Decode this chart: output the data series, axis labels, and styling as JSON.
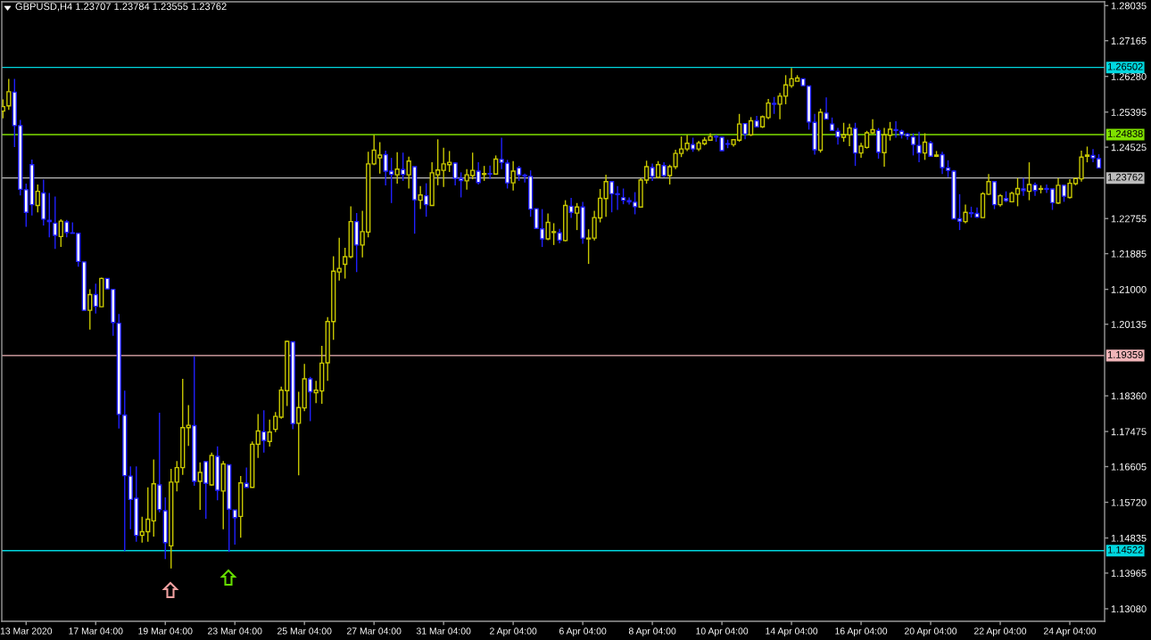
{
  "chart_data": {
    "type": "candlestick",
    "title": "GBPUSD,H4 1.23707 1.23784 1.23555 1.23762",
    "categories": [
      null,
      null,
      null,
      null,
      "13 Mar 2020",
      null,
      null,
      null,
      null,
      null,
      null,
      null,
      null,
      null,
      null,
      null,
      "17 Mar 04:00",
      null,
      null,
      null,
      null,
      null,
      null,
      null,
      null,
      null,
      null,
      null,
      "19 Mar 04:00",
      null,
      null,
      null,
      null,
      null,
      null,
      null,
      null,
      null,
      null,
      null,
      "23 Mar 04:00",
      null,
      null,
      null,
      null,
      null,
      null,
      null,
      null,
      null,
      null,
      null,
      "25 Mar 04:00",
      null,
      null,
      null,
      null,
      null,
      null,
      null,
      null,
      null,
      null,
      null,
      "27 Mar 04:00",
      null,
      null,
      null,
      null,
      null,
      null,
      null,
      null,
      null,
      null,
      null,
      "31 Mar 04:00",
      null,
      null,
      null,
      null,
      null,
      null,
      null,
      null,
      null,
      null,
      null,
      "2 Apr 04:00",
      null,
      null,
      null,
      null,
      null,
      null,
      null,
      null,
      null,
      null,
      null,
      "6 Apr 04:00",
      null,
      null,
      null,
      null,
      null,
      null,
      null,
      null,
      null,
      null,
      null,
      "8 Apr 04:00",
      null,
      null,
      null,
      null,
      null,
      null,
      null,
      null,
      null,
      null,
      null,
      "10 Apr 04:00",
      null,
      null,
      null,
      null,
      null,
      null,
      null,
      null,
      null,
      null,
      null,
      "14 Apr 04:00",
      null,
      null,
      null,
      null,
      null,
      null,
      null,
      null,
      null,
      null,
      null,
      "16 Apr 04:00",
      null,
      null,
      null,
      null,
      null,
      null,
      null,
      null,
      null,
      null,
      null,
      "20 Apr 04:00",
      null,
      null,
      null,
      null,
      null,
      null,
      null,
      null,
      null,
      null,
      null,
      "22 Apr 04:00",
      null,
      null,
      null,
      null,
      null,
      null,
      null,
      null,
      null,
      null,
      null,
      "24 Apr 04:00",
      null,
      null,
      null,
      null,
      null
    ],
    "ohlc": [
      [
        1.2542,
        1.2571,
        1.2524,
        1.2553
      ],
      [
        1.2555,
        1.2622,
        1.2545,
        1.259
      ],
      [
        1.2589,
        1.2622,
        1.2453,
        1.2506
      ],
      [
        1.2506,
        1.252,
        1.2333,
        1.2348
      ],
      [
        1.2347,
        1.2362,
        1.2255,
        1.2291
      ],
      [
        1.2409,
        1.2422,
        1.2283,
        1.231
      ],
      [
        1.2308,
        1.236,
        1.2291,
        1.2343
      ],
      [
        1.2339,
        1.2372,
        1.2258,
        1.2274
      ],
      [
        1.2271,
        1.2339,
        1.2229,
        1.2268
      ],
      [
        1.2264,
        1.233,
        1.22,
        1.2234
      ],
      [
        1.2231,
        1.2274,
        1.2205,
        1.2269
      ],
      [
        1.2267,
        1.2272,
        1.2229,
        1.2241
      ],
      [
        1.224,
        1.2266,
        1.2239,
        1.2239
      ],
      [
        1.2239,
        1.2239,
        1.2156,
        1.2169
      ],
      [
        1.2168,
        1.2168,
        1.2048,
        1.2048
      ],
      [
        1.2048,
        1.21,
        1.2,
        1.2087
      ],
      [
        1.2087,
        1.2114,
        1.204,
        1.2058
      ],
      [
        1.2057,
        1.2129,
        1.2056,
        1.2127
      ],
      [
        1.2127,
        1.2127,
        1.2101,
        1.2101
      ],
      [
        1.21,
        1.21,
        1.1985,
        1.2018
      ],
      [
        1.2016,
        1.2039,
        1.1755,
        1.179
      ],
      [
        1.1788,
        1.1849,
        1.1451,
        1.1638
      ],
      [
        1.1637,
        1.1661,
        1.1505,
        1.1579
      ],
      [
        1.1582,
        1.1661,
        1.1474,
        1.149
      ],
      [
        1.149,
        1.1536,
        1.1472,
        1.1499
      ],
      [
        1.1499,
        1.1609,
        1.1474,
        1.153
      ],
      [
        1.1526,
        1.1678,
        1.1487,
        1.1618
      ],
      [
        1.1615,
        1.1794,
        1.1547,
        1.1554
      ],
      [
        1.1551,
        1.1584,
        1.1431,
        1.1472
      ],
      [
        1.1464,
        1.1655,
        1.1408,
        1.1622
      ],
      [
        1.1622,
        1.1674,
        1.1599,
        1.1658
      ],
      [
        1.1658,
        1.1878,
        1.164,
        1.1757
      ],
      [
        1.1757,
        1.1813,
        1.1712,
        1.1763
      ],
      [
        1.1762,
        1.1934,
        1.1613,
        1.1624
      ],
      [
        1.1624,
        1.1671,
        1.1553,
        1.1646
      ],
      [
        1.1673,
        1.1673,
        1.1531,
        1.1619
      ],
      [
        1.1615,
        1.1695,
        1.1613,
        1.1688
      ],
      [
        1.1686,
        1.1711,
        1.1577,
        1.1602
      ],
      [
        1.16,
        1.1674,
        1.1505,
        1.1667
      ],
      [
        1.1665,
        1.1665,
        1.1449,
        1.1555
      ],
      [
        1.1553,
        1.1553,
        1.1467,
        1.1534
      ],
      [
        1.1537,
        1.1637,
        1.1484,
        1.162
      ],
      [
        1.1619,
        1.1658,
        1.1609,
        1.1609
      ],
      [
        1.1609,
        1.1723,
        1.1608,
        1.1716
      ],
      [
        1.1716,
        1.1791,
        1.1682,
        1.1749
      ],
      [
        1.1747,
        1.18,
        1.1695,
        1.1725
      ],
      [
        1.1723,
        1.1777,
        1.171,
        1.1746
      ],
      [
        1.1753,
        1.1796,
        1.1746,
        1.1785
      ],
      [
        1.1783,
        1.1859,
        1.1779,
        1.185
      ],
      [
        1.1849,
        1.1973,
        1.1811,
        1.1971
      ],
      [
        1.197,
        1.197,
        1.1753,
        1.1767
      ],
      [
        1.1768,
        1.1846,
        1.1639,
        1.1807
      ],
      [
        1.1806,
        1.1915,
        1.1798,
        1.1878
      ],
      [
        1.1878,
        1.1883,
        1.1773,
        1.1846
      ],
      [
        1.1844,
        1.1873,
        1.1818,
        1.185
      ],
      [
        1.1848,
        1.196,
        1.1816,
        1.1917
      ],
      [
        1.1918,
        1.2031,
        1.1873,
        1.202
      ],
      [
        1.202,
        1.2182,
        1.1975,
        1.2145
      ],
      [
        1.2143,
        1.2228,
        1.2122,
        1.2152
      ],
      [
        1.2162,
        1.2203,
        1.2127,
        1.2181
      ],
      [
        1.2181,
        1.2306,
        1.2177,
        1.2268
      ],
      [
        1.2268,
        1.2289,
        1.2143,
        1.221
      ],
      [
        1.221,
        1.2295,
        1.2179,
        1.2243
      ],
      [
        1.2242,
        1.2441,
        1.2229,
        1.2411
      ],
      [
        1.2411,
        1.2483,
        1.2408,
        1.2445
      ],
      [
        1.2426,
        1.2465,
        1.2387,
        1.2433
      ],
      [
        1.2434,
        1.2444,
        1.2358,
        1.2393
      ],
      [
        1.2393,
        1.2426,
        1.2314,
        1.2385
      ],
      [
        1.2384,
        1.244,
        1.2362,
        1.2398
      ],
      [
        1.2397,
        1.2439,
        1.2369,
        1.2385
      ],
      [
        1.2384,
        1.2429,
        1.235,
        1.2418
      ],
      [
        1.2404,
        1.2404,
        1.2238,
        1.2322
      ],
      [
        1.2321,
        1.2356,
        1.2299,
        1.2334
      ],
      [
        1.2332,
        1.2363,
        1.228,
        1.231
      ],
      [
        1.2308,
        1.2415,
        1.2308,
        1.2389
      ],
      [
        1.2384,
        1.2472,
        1.2358,
        1.2396
      ],
      [
        1.2395,
        1.2451,
        1.2354,
        1.2411
      ],
      [
        1.2409,
        1.2443,
        1.2391,
        1.2415
      ],
      [
        1.2413,
        1.2415,
        1.2358,
        1.2375
      ],
      [
        1.2375,
        1.239,
        1.2328,
        1.237
      ],
      [
        1.2369,
        1.2398,
        1.2347,
        1.2384
      ],
      [
        1.2382,
        1.2439,
        1.2373,
        1.2395
      ],
      [
        1.2393,
        1.2415,
        1.236,
        1.2365
      ],
      [
        1.2385,
        1.2406,
        1.2369,
        1.2387
      ],
      [
        1.2387,
        1.2407,
        1.2373,
        1.2386
      ],
      [
        1.2386,
        1.2432,
        1.2384,
        1.2423
      ],
      [
        1.2422,
        1.2476,
        1.2398,
        1.2415
      ],
      [
        1.2413,
        1.2421,
        1.235,
        1.2364
      ],
      [
        1.2364,
        1.2418,
        1.2345,
        1.2393
      ],
      [
        1.2401,
        1.2406,
        1.2369,
        1.2384
      ],
      [
        1.2383,
        1.2387,
        1.2365,
        1.2381
      ],
      [
        1.238,
        1.2395,
        1.228,
        1.2299
      ],
      [
        1.23,
        1.23,
        1.225,
        1.2251
      ],
      [
        1.225,
        1.2299,
        1.2205,
        1.2225
      ],
      [
        1.2225,
        1.2288,
        1.2222,
        1.2266
      ],
      [
        1.2241,
        1.2264,
        1.221,
        1.2243
      ],
      [
        1.224,
        1.225,
        1.2214,
        1.2222
      ],
      [
        1.2221,
        1.2321,
        1.2219,
        1.2308
      ],
      [
        1.2306,
        1.2327,
        1.2277,
        1.2291
      ],
      [
        1.2289,
        1.2314,
        1.2247,
        1.2304
      ],
      [
        1.2304,
        1.2317,
        1.2213,
        1.2227
      ],
      [
        1.2225,
        1.2249,
        1.2163,
        1.2227
      ],
      [
        1.2227,
        1.2295,
        1.2221,
        1.2278
      ],
      [
        1.2277,
        1.2349,
        1.2266,
        1.2326
      ],
      [
        1.2325,
        1.2384,
        1.228,
        1.2367
      ],
      [
        1.2367,
        1.2367,
        1.2291,
        1.2337
      ],
      [
        1.2337,
        1.2356,
        1.2297,
        1.2335
      ],
      [
        1.2327,
        1.235,
        1.2311,
        1.2321
      ],
      [
        1.232,
        1.2328,
        1.231,
        1.2317
      ],
      [
        1.2316,
        1.2341,
        1.2286,
        1.2305
      ],
      [
        1.2304,
        1.2376,
        1.2304,
        1.2371
      ],
      [
        1.2371,
        1.2419,
        1.2362,
        1.2404
      ],
      [
        1.2402,
        1.2412,
        1.2369,
        1.238
      ],
      [
        1.2378,
        1.2418,
        1.2375,
        1.2409
      ],
      [
        1.2407,
        1.2415,
        1.2378,
        1.2382
      ],
      [
        1.2382,
        1.2409,
        1.236,
        1.2404
      ],
      [
        1.2404,
        1.2446,
        1.2398,
        1.2437
      ],
      [
        1.2437,
        1.2479,
        1.2428,
        1.2448
      ],
      [
        1.2448,
        1.2483,
        1.2443,
        1.2462
      ],
      [
        1.2459,
        1.2476,
        1.2441,
        1.2448
      ],
      [
        1.2448,
        1.2468,
        1.2443,
        1.2463
      ],
      [
        1.2461,
        1.2477,
        1.2457,
        1.247
      ],
      [
        1.247,
        1.2487,
        1.2468,
        1.2479
      ],
      [
        1.2479,
        1.2483,
        1.2466,
        1.2478
      ],
      [
        1.2477,
        1.2479,
        1.2444,
        1.2444
      ],
      [
        1.2461,
        1.2471,
        1.245,
        1.246
      ],
      [
        1.2459,
        1.2472,
        1.2454,
        1.2471
      ],
      [
        1.247,
        1.2535,
        1.2466,
        1.251
      ],
      [
        1.2511,
        1.2511,
        1.2472,
        1.2485
      ],
      [
        1.2483,
        1.2527,
        1.248,
        1.2518
      ],
      [
        1.2518,
        1.253,
        1.2503,
        1.2503
      ],
      [
        1.2503,
        1.2531,
        1.25,
        1.2528
      ],
      [
        1.2526,
        1.2572,
        1.2522,
        1.2562
      ],
      [
        1.2561,
        1.2577,
        1.2535,
        1.2559
      ],
      [
        1.2559,
        1.2587,
        1.2522,
        1.2579
      ],
      [
        1.2579,
        1.2631,
        1.2559,
        1.2607
      ],
      [
        1.2605,
        1.2649,
        1.26,
        1.2622
      ],
      [
        1.2616,
        1.2631,
        1.2616,
        1.2624
      ],
      [
        1.2622,
        1.2622,
        1.2605,
        1.2605
      ],
      [
        1.2604,
        1.2604,
        1.2496,
        1.2515
      ],
      [
        1.2514,
        1.2535,
        1.2434,
        1.2446
      ],
      [
        1.2445,
        1.2548,
        1.2439,
        1.2539
      ],
      [
        1.2537,
        1.2576,
        1.2522,
        1.2522
      ],
      [
        1.251,
        1.2526,
        1.2494,
        1.2494
      ],
      [
        1.2492,
        1.25,
        1.2459,
        1.2478
      ],
      [
        1.2477,
        1.2513,
        1.2466,
        1.2483
      ],
      [
        1.2483,
        1.2511,
        1.2455,
        1.25
      ],
      [
        1.2499,
        1.2513,
        1.2406,
        1.2438
      ],
      [
        1.2438,
        1.2463,
        1.2426,
        1.2455
      ],
      [
        1.2452,
        1.2493,
        1.2449,
        1.2488
      ],
      [
        1.2488,
        1.2522,
        1.2485,
        1.2496
      ],
      [
        1.2494,
        1.25,
        1.2424,
        1.244
      ],
      [
        1.2439,
        1.25,
        1.2404,
        1.2483
      ],
      [
        1.2482,
        1.2515,
        1.2469,
        1.2497
      ],
      [
        1.2496,
        1.2517,
        1.2476,
        1.2494
      ],
      [
        1.2492,
        1.2496,
        1.2474,
        1.2483
      ],
      [
        1.2485,
        1.2488,
        1.2471,
        1.248
      ],
      [
        1.2478,
        1.2487,
        1.2432,
        1.2459
      ],
      [
        1.2457,
        1.2491,
        1.2415,
        1.2438
      ],
      [
        1.2438,
        1.2487,
        1.2421,
        1.2465
      ],
      [
        1.2463,
        1.2468,
        1.243,
        1.243
      ],
      [
        1.243,
        1.2443,
        1.2428,
        1.2433
      ],
      [
        1.2434,
        1.2441,
        1.2386,
        1.2402
      ],
      [
        1.2401,
        1.242,
        1.2378,
        1.2395
      ],
      [
        1.2393,
        1.2396,
        1.2275,
        1.2275
      ],
      [
        1.2275,
        1.2336,
        1.2247,
        1.2269
      ],
      [
        1.2268,
        1.231,
        1.2264,
        1.2291
      ],
      [
        1.229,
        1.2305,
        1.2278,
        1.2288
      ],
      [
        1.2288,
        1.2303,
        1.2277,
        1.2279
      ],
      [
        1.2278,
        1.2341,
        1.2277,
        1.2337
      ],
      [
        1.2336,
        1.2386,
        1.2334,
        1.2367
      ],
      [
        1.2367,
        1.2367,
        1.2299,
        1.231
      ],
      [
        1.231,
        1.2336,
        1.2305,
        1.2332
      ],
      [
        1.2325,
        1.2343,
        1.2316,
        1.232
      ],
      [
        1.2317,
        1.2342,
        1.2316,
        1.2338
      ],
      [
        1.2336,
        1.2376,
        1.2306,
        1.235
      ],
      [
        1.2349,
        1.2376,
        1.2332,
        1.2345
      ],
      [
        1.2343,
        1.2415,
        1.2321,
        1.236
      ],
      [
        1.2359,
        1.2365,
        1.2332,
        1.2345
      ],
      [
        1.2348,
        1.2358,
        1.2338,
        1.235
      ],
      [
        1.235,
        1.236,
        1.2339,
        1.2348
      ],
      [
        1.2349,
        1.2349,
        1.2297,
        1.2315
      ],
      [
        1.2314,
        1.2376,
        1.2312,
        1.2358
      ],
      [
        1.2358,
        1.236,
        1.2317,
        1.2331
      ],
      [
        1.2328,
        1.2373,
        1.2325,
        1.2363
      ],
      [
        1.2362,
        1.2375,
        1.2358,
        1.2375
      ],
      [
        1.2374,
        1.2444,
        1.2367,
        1.2428
      ],
      [
        1.243,
        1.2454,
        1.2415,
        1.2433
      ],
      [
        1.2432,
        1.2448,
        1.2415,
        1.2426
      ],
      [
        1.2424,
        1.2435,
        1.2401,
        1.2401
      ]
    ],
    "colors": [
      "#c8c800",
      "#c8c800",
      "#ffffff",
      "#ffffff",
      "#ffffff",
      "#ffffff",
      "#c8c800",
      "#ffffff",
      "#ffffff",
      "#ffffff",
      "#c8c800",
      "#ffffff",
      "#ffffff",
      "#ffffff",
      "#ffffff",
      "#c8c800",
      "#ffffff",
      "#c8c800",
      "#ffffff",
      "#ffffff",
      "#ffffff",
      "#ffffff",
      "#ffffff",
      "#ffffff",
      "#c8c800",
      "#c8c800",
      "#c8c800",
      "#ffffff",
      "#ffffff",
      "#c8c800",
      "#c8c800",
      "#c8c800",
      "#c8c800",
      "#ffffff",
      "#c8c800",
      "#ffffff",
      "#c8c800",
      "#ffffff",
      "#c8c800",
      "#ffffff",
      "#ffffff",
      "#c8c800",
      "#ffffff",
      "#c8c800",
      "#c8c800",
      "#ffffff",
      "#c8c800",
      "#c8c800",
      "#c8c800",
      "#c8c800",
      "#ffffff",
      "#c8c800",
      "#c8c800",
      "#ffffff",
      "#c8c800",
      "#c8c800",
      "#c8c800",
      "#c8c800",
      "#c8c800",
      "#c8c800",
      "#c8c800",
      "#ffffff",
      "#c8c800",
      "#c8c800",
      "#c8c800",
      "#c8c800",
      "#ffffff",
      "#ffffff",
      "#c8c800",
      "#ffffff",
      "#c8c800",
      "#ffffff",
      "#c8c800",
      "#ffffff",
      "#c8c800",
      "#c8c800",
      "#c8c800",
      "#c8c800",
      "#ffffff",
      "#ffffff",
      "#c8c800",
      "#c8c800",
      "#ffffff",
      "#c8c800",
      "#ffffff",
      "#c8c800",
      "#ffffff",
      "#ffffff",
      "#c8c800",
      "#ffffff",
      "#ffffff",
      "#ffffff",
      "#ffffff",
      "#ffffff",
      "#c8c800",
      "#c8c800",
      "#ffffff",
      "#c8c800",
      "#ffffff",
      "#c8c800",
      "#ffffff",
      "#c8c800",
      "#c8c800",
      "#c8c800",
      "#c8c800",
      "#ffffff",
      "#ffffff",
      "#ffffff",
      "#ffffff",
      "#ffffff",
      "#c8c800",
      "#c8c800",
      "#ffffff",
      "#c8c800",
      "#ffffff",
      "#c8c800",
      "#c8c800",
      "#c8c800",
      "#c8c800",
      "#ffffff",
      "#c8c800",
      "#c8c800",
      "#c8c800",
      "#ffffff",
      "#ffffff",
      "#ffffff",
      "#c8c800",
      "#c8c800",
      "#ffffff",
      "#c8c800",
      "#ffffff",
      "#c8c800",
      "#c8c800",
      "#ffffff",
      "#c8c800",
      "#c8c800",
      "#c8c800",
      "#c8c800",
      "#ffffff",
      "#ffffff",
      "#ffffff",
      "#c8c800",
      "#ffffff",
      "#ffffff",
      "#ffffff",
      "#c8c800",
      "#c8c800",
      "#ffffff",
      "#c8c800",
      "#c8c800",
      "#c8c800",
      "#ffffff",
      "#c8c800",
      "#c8c800",
      "#ffffff",
      "#ffffff",
      "#ffffff",
      "#ffffff",
      "#ffffff",
      "#c8c800",
      "#ffffff",
      "#c8c800",
      "#ffffff",
      "#ffffff",
      "#ffffff",
      "#ffffff",
      "#c8c800",
      "#ffffff",
      "#ffffff",
      "#c8c800",
      "#c8c800",
      "#ffffff",
      "#c8c800",
      "#ffffff",
      "#c8c800",
      "#c8c800",
      "#ffffff",
      "#c8c800",
      "#ffffff",
      "#c8c800",
      "#ffffff",
      "#ffffff",
      "#c8c800",
      "#ffffff",
      "#c8c800",
      "#c8c800",
      "#c8c800",
      "#c8c800",
      "#ffffff",
      "#ffffff"
    ],
    "ylim": [
      1.1277,
      1.2813
    ],
    "yticks": [
      1.28035,
      1.27165,
      {
        "value": 1.2628,
        "label": "1.26280"
      },
      1.25395,
      1.24525,
      1.22755,
      1.21885,
      {
        "value": 1.21,
        "label": "1.21000"
      },
      1.20135,
      {
        "value": 1.1836,
        "label": "1.18360"
      },
      1.17475,
      1.16605,
      {
        "value": 1.1572,
        "label": "1.15720"
      },
      1.14835,
      1.13965,
      {
        "value": 1.1308,
        "label": "1.13080"
      }
    ],
    "ref_lines": [
      {
        "axis": "y",
        "value": 1.26502,
        "label": "1.26502",
        "color": "#00d8e0"
      },
      {
        "axis": "y",
        "value": 1.24838,
        "label": "1.24838",
        "color": "#7fe000"
      },
      {
        "axis": "y",
        "value": 1.23762,
        "label": "1.23762",
        "color": "#bcbcbc"
      },
      {
        "axis": "y",
        "value": 1.19359,
        "label": "1.19359",
        "color": "#f0b4b8"
      },
      {
        "axis": "y",
        "value": 1.14522,
        "label": "1.14522",
        "color": "#00d8e0"
      }
    ]
  }
}
